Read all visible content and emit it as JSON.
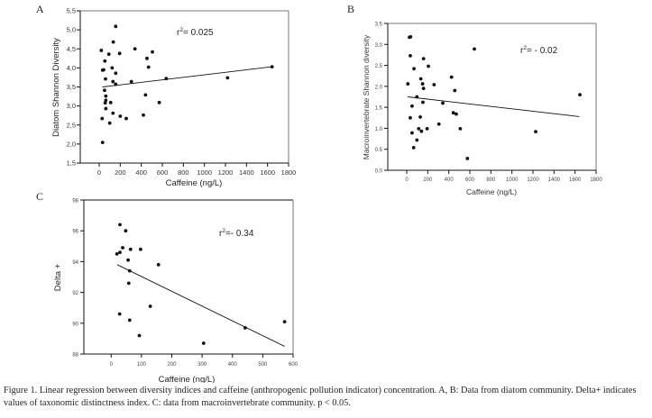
{
  "caption": "Figure 1. Linear regression between diversity indices and caffeine (anthropogenic pollution indicator) concentration. A, B: Data from diatom community. Delta+ indicates values of taxonomic distinctness index. C: data from macroinvertebrate community. p < 0.05.",
  "chart_data": [
    {
      "id": "A",
      "type": "scatter",
      "panel_letter": "A",
      "title": "",
      "xlabel": "Caffeine (ng/L)",
      "ylabel": "Diatom Shannon Diversity",
      "xlim": [
        -180,
        1800
      ],
      "ylim": [
        1.5,
        5.5
      ],
      "xticks": [
        0,
        200,
        400,
        600,
        800,
        1000,
        1200,
        1400,
        1600,
        1800
      ],
      "yticks": [
        1.5,
        2.0,
        2.5,
        3.0,
        3.5,
        4.0,
        4.5,
        5.0,
        5.5
      ],
      "ytick_labels": [
        "1,5",
        "2,0",
        "2,5",
        "3,0",
        "3,5",
        "4,0",
        "4,5",
        "5,0",
        "5,5"
      ],
      "annotation": {
        "prefix": "r",
        "sup": "2",
        "text": "= 0.025"
      },
      "grid": false,
      "points": [
        [
          20,
          4.46
        ],
        [
          157,
          5.09
        ],
        [
          134,
          4.68
        ],
        [
          54,
          4.18
        ],
        [
          92,
          4.36
        ],
        [
          194,
          4.38
        ],
        [
          340,
          4.5
        ],
        [
          506,
          4.42
        ],
        [
          454,
          4.25
        ],
        [
          469,
          4.02
        ],
        [
          32,
          3.94
        ],
        [
          43,
          3.95
        ],
        [
          123,
          4.0
        ],
        [
          157,
          3.86
        ],
        [
          60,
          3.71
        ],
        [
          131,
          3.64
        ],
        [
          157,
          3.57
        ],
        [
          306,
          3.64
        ],
        [
          637,
          3.72
        ],
        [
          1220,
          3.74
        ],
        [
          1643,
          4.03
        ],
        [
          51,
          3.41
        ],
        [
          63,
          3.26
        ],
        [
          63,
          3.15
        ],
        [
          57,
          3.08
        ],
        [
          109,
          3.09
        ],
        [
          440,
          3.29
        ],
        [
          571,
          3.09
        ],
        [
          63,
          2.93
        ],
        [
          131,
          2.81
        ],
        [
          200,
          2.73
        ],
        [
          257,
          2.67
        ],
        [
          420,
          2.76
        ],
        [
          28,
          2.67
        ],
        [
          100,
          2.55
        ],
        [
          32,
          2.04
        ]
      ],
      "regression": {
        "x": [
          30,
          1643
        ],
        "y": [
          3.5,
          4.03
        ]
      }
    },
    {
      "id": "B",
      "type": "scatter",
      "panel_letter": "B",
      "title": "",
      "xlabel": "Caffeine (ng/L)",
      "ylabel": "Macroinvertebrate Shannon diversity",
      "xlim": [
        -180,
        1800
      ],
      "ylim": [
        0.0,
        3.5
      ],
      "xticks": [
        0,
        200,
        400,
        600,
        800,
        1000,
        1200,
        1400,
        1600,
        1800
      ],
      "yticks": [
        0.0,
        0.5,
        1.0,
        1.5,
        2.0,
        2.5,
        3.0,
        3.5
      ],
      "ytick_labels": [
        "0.0",
        "0.5",
        "1.0",
        "1.5",
        "2.0",
        "2.5",
        "3.0",
        "3.5"
      ],
      "annotation": {
        "prefix": "r",
        "sup": "2",
        "text": "= - 0.02"
      },
      "grid": false,
      "points": [
        [
          26,
          3.17
        ],
        [
          37,
          3.18
        ],
        [
          34,
          2.73
        ],
        [
          69,
          2.42
        ],
        [
          160,
          2.66
        ],
        [
          206,
          2.48
        ],
        [
          643,
          2.89
        ],
        [
          11,
          2.06
        ],
        [
          134,
          2.18
        ],
        [
          151,
          2.06
        ],
        [
          160,
          1.95
        ],
        [
          260,
          2.04
        ],
        [
          426,
          2.22
        ],
        [
          457,
          1.9
        ],
        [
          97,
          1.75
        ],
        [
          51,
          1.53
        ],
        [
          154,
          1.62
        ],
        [
          343,
          1.6
        ],
        [
          34,
          1.25
        ],
        [
          129,
          1.27
        ],
        [
          443,
          1.37
        ],
        [
          471,
          1.34
        ],
        [
          1646,
          1.8
        ],
        [
          306,
          1.1
        ],
        [
          114,
          0.99
        ],
        [
          194,
          0.99
        ],
        [
          509,
          0.99
        ],
        [
          140,
          0.93
        ],
        [
          51,
          0.89
        ],
        [
          1226,
          0.92
        ],
        [
          97,
          0.72
        ],
        [
          66,
          0.54
        ],
        [
          577,
          0.28
        ]
      ],
      "regression": {
        "x": [
          10,
          1640
        ],
        "y": [
          1.75,
          1.28
        ]
      }
    },
    {
      "id": "C",
      "type": "scatter",
      "panel_letter": "C",
      "title": "",
      "xlabel": "Caffeine (ng/L)",
      "ylabel": "Delta +",
      "xlim": [
        -90,
        600
      ],
      "ylim": [
        88,
        98
      ],
      "xticks": [
        0,
        100,
        200,
        300,
        400,
        500,
        600
      ],
      "yticks": [
        88,
        90,
        92,
        94,
        96,
        98
      ],
      "ytick_labels": [
        "88",
        "90",
        "92",
        "94",
        "96",
        "98"
      ],
      "annotation": {
        "prefix": "r",
        "sup": "2",
        "text": "=- 0.34"
      },
      "grid": false,
      "points": [
        [
          29,
          96.4
        ],
        [
          48,
          96.0
        ],
        [
          38,
          94.9
        ],
        [
          64,
          94.8
        ],
        [
          97,
          94.8
        ],
        [
          19,
          94.5
        ],
        [
          29,
          94.6
        ],
        [
          56,
          94.1
        ],
        [
          156,
          93.8
        ],
        [
          61,
          93.4
        ],
        [
          58,
          92.6
        ],
        [
          129,
          91.1
        ],
        [
          28,
          90.6
        ],
        [
          61,
          90.2
        ],
        [
          93,
          89.2
        ],
        [
          305,
          88.7
        ],
        [
          442,
          89.7
        ],
        [
          572,
          90.1
        ]
      ],
      "regression": {
        "x": [
          20,
          572
        ],
        "y": [
          93.8,
          88.5
        ]
      }
    }
  ]
}
